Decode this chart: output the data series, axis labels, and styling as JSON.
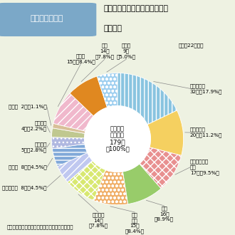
{
  "title_line1": "危険物施設における火災事故の",
  "title_line2": "着火原因",
  "figure_label": "第１－２－６図",
  "subtitle": "（平成22年中）",
  "center_lines": [
    "火災事故",
    "発生総数",
    "179件",
    "（100%）"
  ],
  "note": "（備考）　「危険物に係る事故報告」により作成",
  "slices": [
    {
      "label": "静電気火花",
      "label2": "32件（17.9%）",
      "count": 32,
      "color": "#89c4e0",
      "hatch": "|||"
    },
    {
      "label": "高温表面熱",
      "label2": "20件（11.2%）",
      "count": 20,
      "color": "#f5d060",
      "hatch": ""
    },
    {
      "label": "溶接・溶断等",
      "label2": "火花\n17件（9.5%）",
      "count": 17,
      "color": "#e89090",
      "hatch": "xxx"
    },
    {
      "label": "裸火",
      "label2": "16件\n（8.9%）",
      "count": 16,
      "color": "#98cc6a",
      "hatch": ""
    },
    {
      "label": "電気\n火花",
      "label2": "15件\n（8.4%）",
      "count": 15,
      "color": "#f0b06a",
      "hatch": "ooo"
    },
    {
      "label": "過熱着火",
      "label2": "14件\n（7.8%）",
      "count": 14,
      "color": "#d8e870",
      "hatch": "xxx"
    },
    {
      "label": "化学反応熱",
      "label2": "8件（4.5%）",
      "count": 8,
      "color": "#c0c8f0",
      "hatch": "///"
    },
    {
      "label": "摩擦熱",
      "label2": "8件（4.5%）",
      "count": 8,
      "color": "#80a8d8",
      "hatch": "---"
    },
    {
      "label": "衝撃火花",
      "label2": "5件（2.8%）",
      "count": 5,
      "color": "#b0b8e0",
      "hatch": "..."
    },
    {
      "label": "自然発火",
      "label2": "4件（2.2%）",
      "count": 4,
      "color": "#c0c890",
      "hatch": ""
    },
    {
      "label": "放射熱",
      "label2": "2件（1.1%）",
      "count": 2,
      "color": "#d8c098",
      "hatch": ""
    },
    {
      "label": "その他",
      "label2": "15件（8.4%）",
      "count": 15,
      "color": "#f0b8cc",
      "hatch": "///"
    },
    {
      "label": "不明",
      "label2": "14件\n（7.8%）",
      "count": 14,
      "color": "#e08820",
      "hatch": ""
    },
    {
      "label": "調査中",
      "label2": "9件\n（5.0%）",
      "count": 9,
      "color": "#a0d0f0",
      "hatch": "ooo"
    }
  ],
  "bg_color": "#eef2e2",
  "header_bg": "#7ba8c8",
  "header_text_color": "#ffffff",
  "white": "#ffffff",
  "label_bg": "#eef2e2"
}
